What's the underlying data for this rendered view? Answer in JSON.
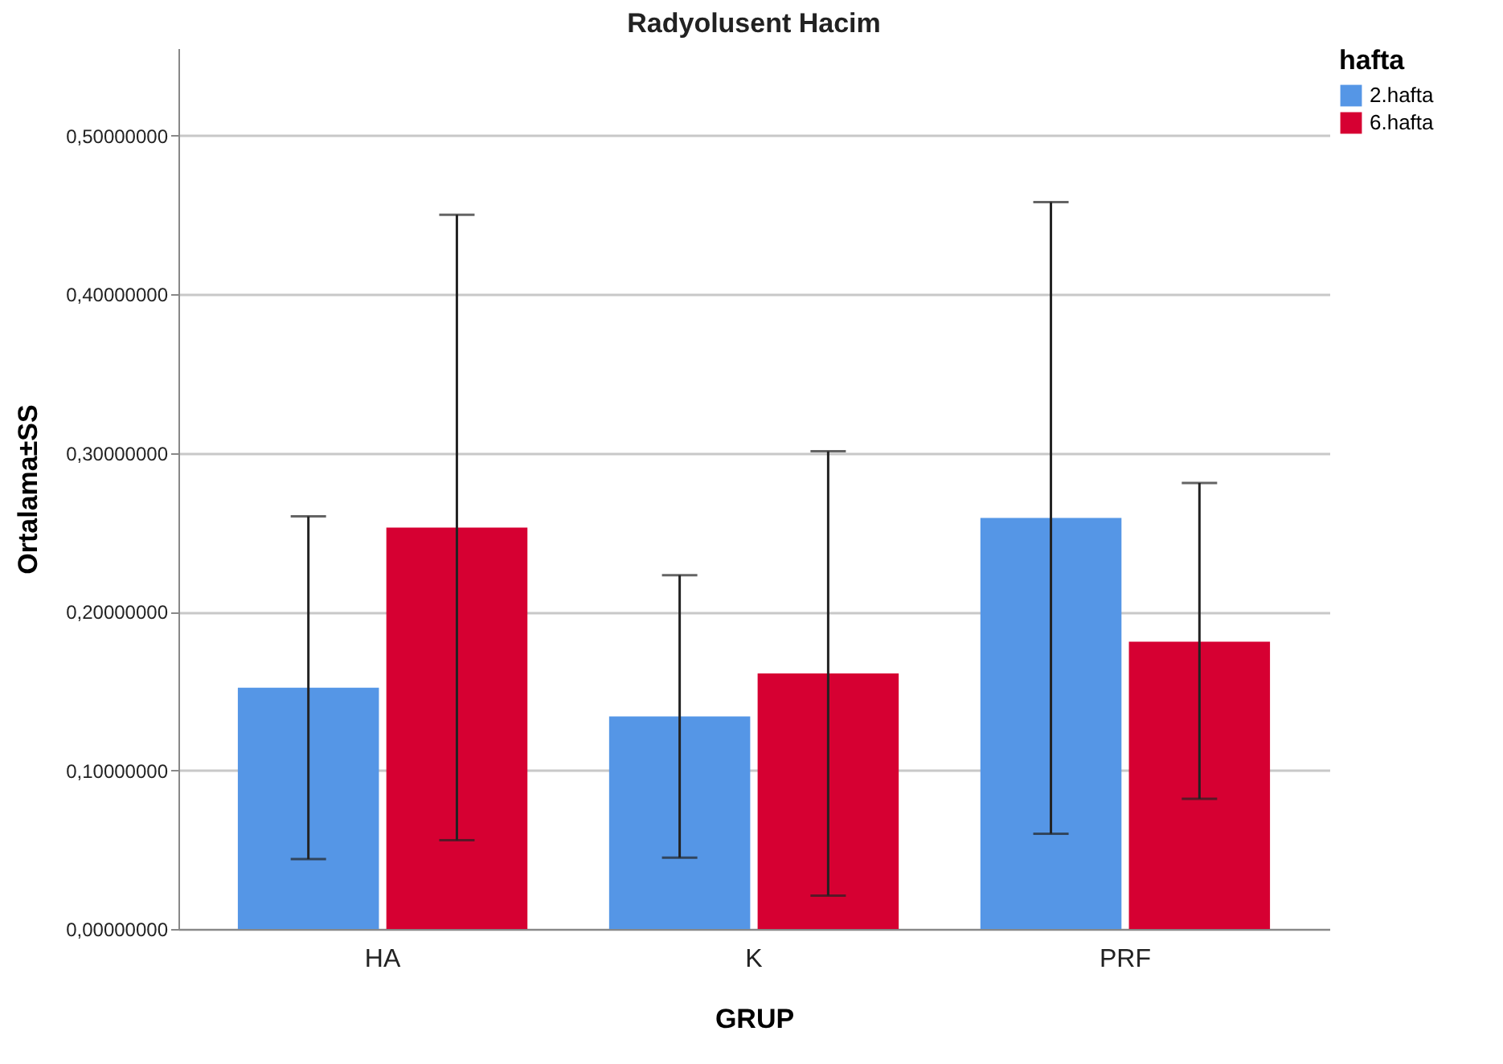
{
  "chart_data": {
    "type": "bar",
    "title": "Radyolusent Hacim",
    "xlabel": "GRUP",
    "ylabel": "Ortalama±SS",
    "legend_title": "hafta",
    "categories": [
      "HA",
      "K",
      "PRF"
    ],
    "series": [
      {
        "name": "2.hafta",
        "color": "#5596e6",
        "values": [
          0.152,
          0.134,
          0.259
        ],
        "errors": [
          [
            0.044,
            0.26
          ],
          [
            0.045,
            0.223
          ],
          [
            0.06,
            0.458
          ]
        ]
      },
      {
        "name": "6.hafta",
        "color": "#d60032",
        "values": [
          0.253,
          0.161,
          0.181
        ],
        "errors": [
          [
            0.056,
            0.45
          ],
          [
            0.021,
            0.301
          ],
          [
            0.082,
            0.281
          ]
        ]
      }
    ],
    "ylim": [
      0,
      0.555
    ],
    "yticks": [
      {
        "value": 0,
        "label": "0,00000000"
      },
      {
        "value": 0.1,
        "label": "0,10000000"
      },
      {
        "value": 0.2,
        "label": "0,20000000"
      },
      {
        "value": 0.3,
        "label": "0,30000000"
      },
      {
        "value": 0.4,
        "label": "0,40000000"
      },
      {
        "value": 0.5,
        "label": "0,50000000"
      }
    ],
    "grid": "y",
    "legend": "top right"
  }
}
